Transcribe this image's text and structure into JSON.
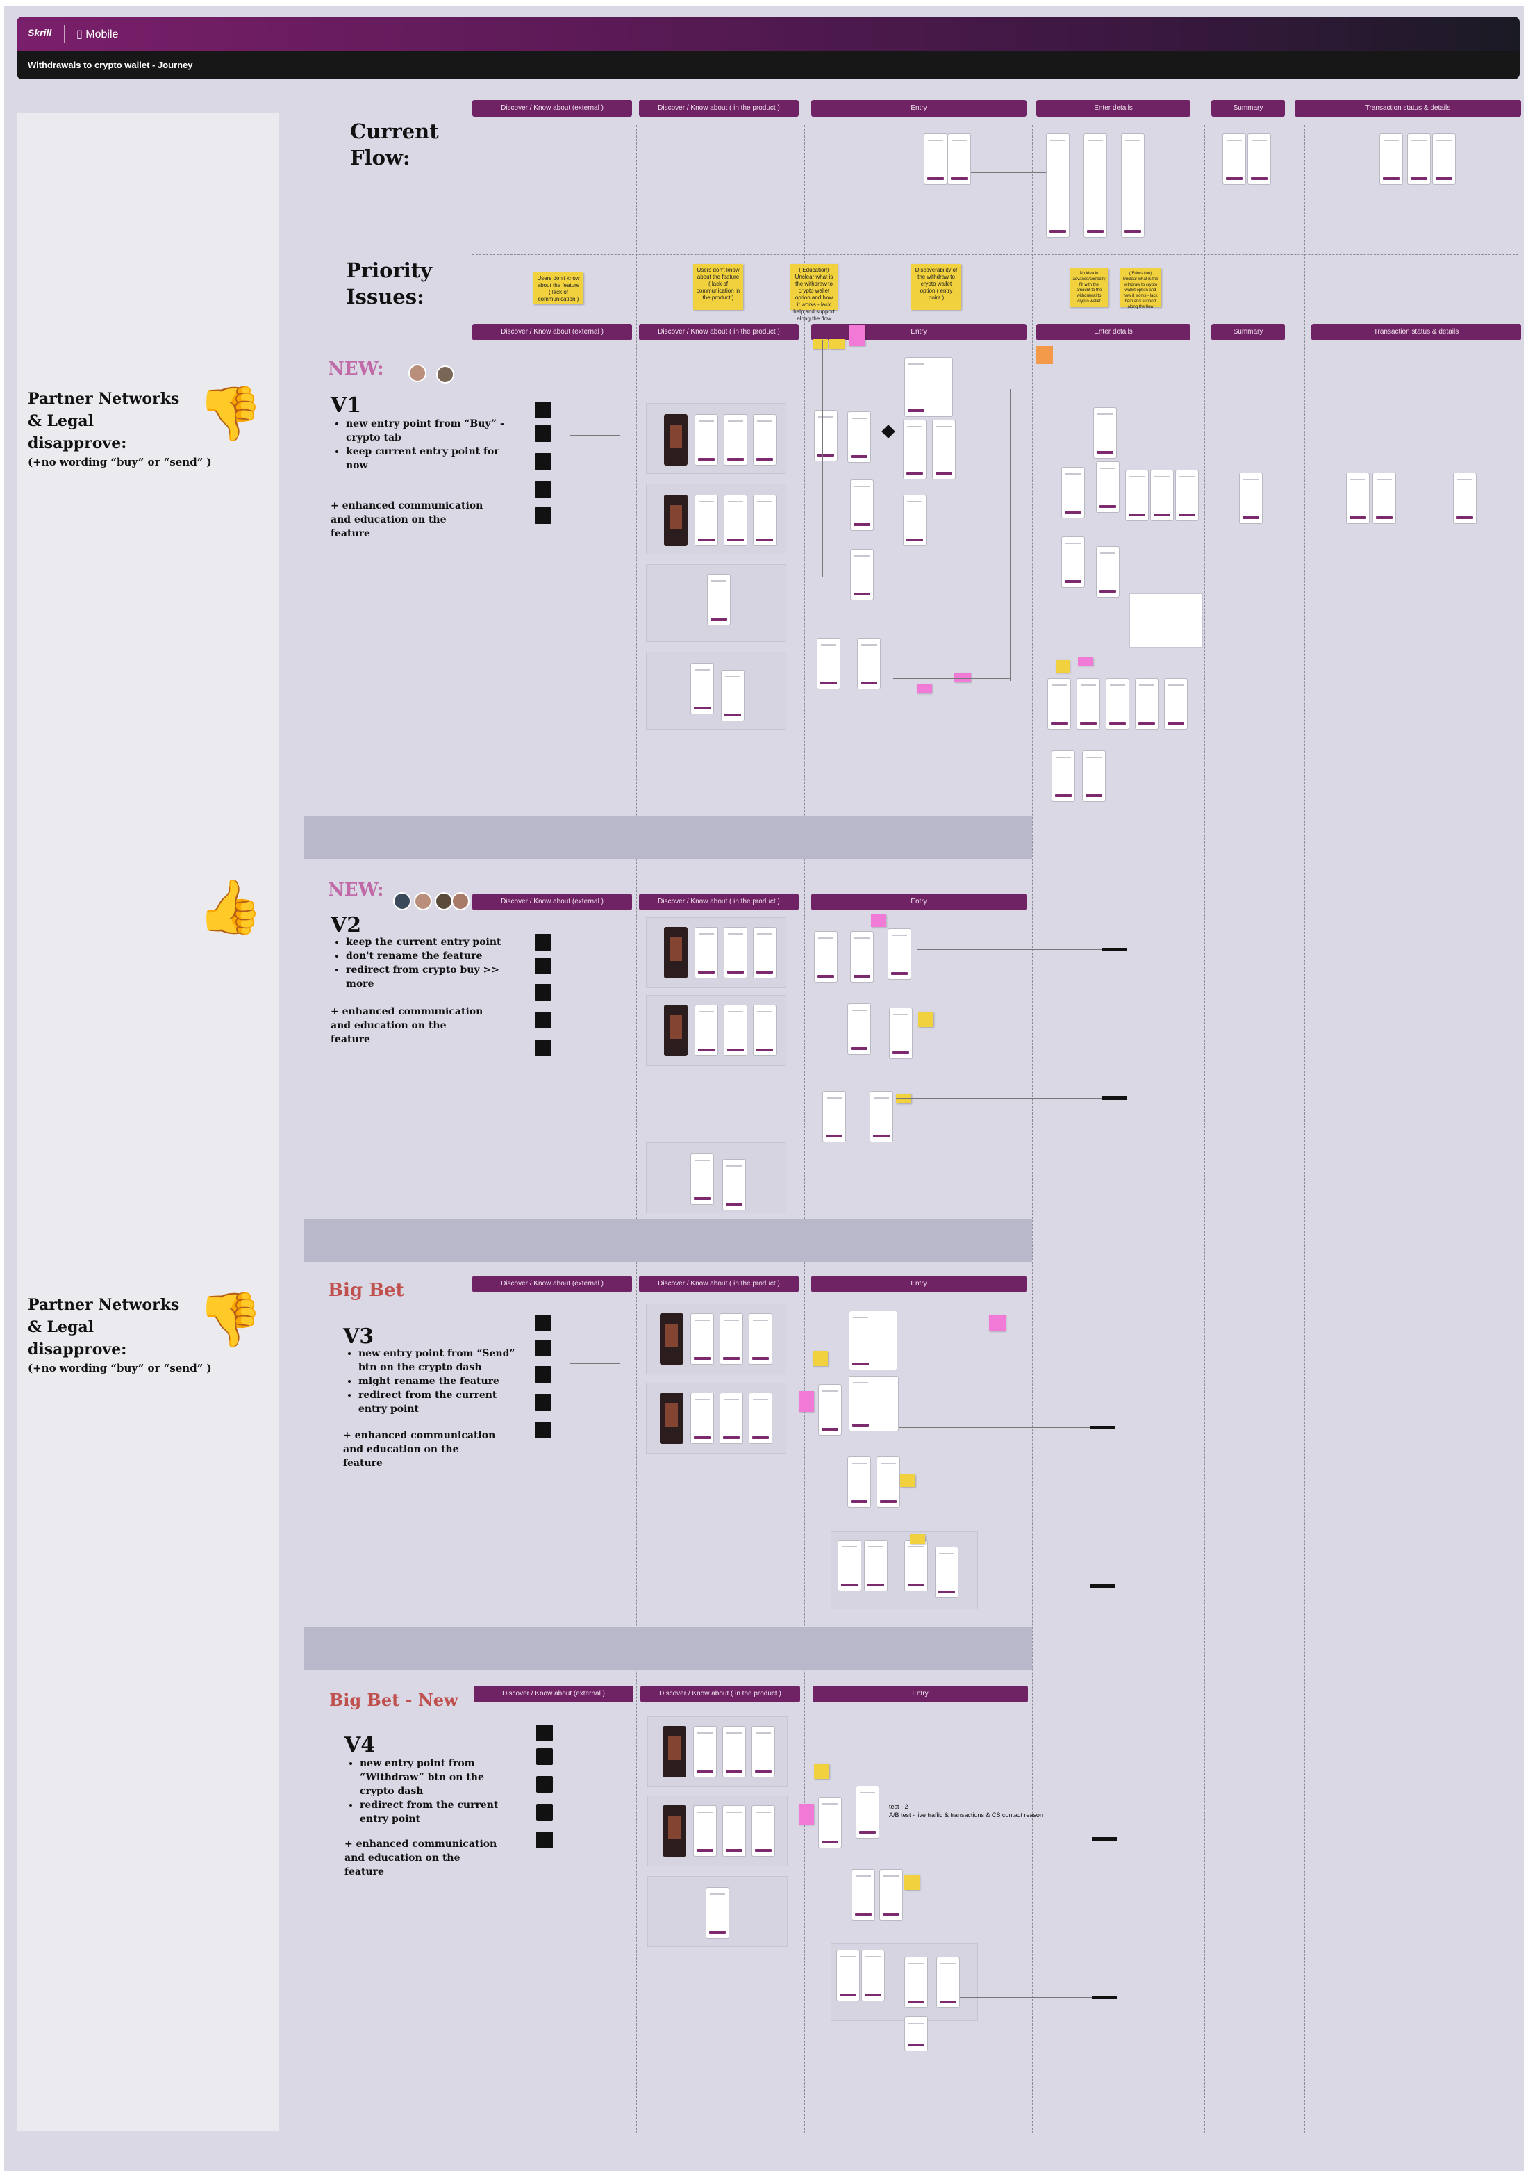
{
  "header": {
    "brand": "Skrill",
    "platform_icon": "mobile-phone-icon",
    "platform": "Mobile",
    "board_title": "Withdrawals to crypto wallet - Journey"
  },
  "stages_top": [
    "Discover / Know about (external )",
    "Discover / Know about ( in the product )",
    "Entry",
    "Enter details",
    "Summary",
    "Transaction status & details"
  ],
  "stages_v1": [
    "Discover / Know about (external )",
    "Discover / Know about ( in the product )",
    "Entry",
    "Enter details",
    "Summary",
    "Transaction status & details"
  ],
  "stages_short": [
    "Discover / Know about (external )",
    "Discover / Know about ( in the product )",
    "Entry"
  ],
  "sections": {
    "current_flow": "Current Flow:",
    "priority_issues": "Priority Issues:"
  },
  "priority_stickies": [
    "Users don't know about the feature ( lack of communication )",
    "Users don't know about the feature ( lack of communication in the product )",
    "( Education) Unclear what is the withdraw to crypto wallet option and how it works - lack help and support along the flow",
    "Discoverability of the withdraw to crypto wallet option ( entry point )",
    "No idea in advance/correctly fill with the amount to the withdrawal to crypto wallet",
    "( Education) Unclear what is the withdraw to crypto wallet option and how it works - lack help and support along the flow"
  ],
  "left_notes": {
    "disapprove_1_title": "Partner Networks & Legal disapprove:",
    "disapprove_1_note": "(+no wording “buy” or “send” )",
    "disapprove_2_title": "Partner Networks & Legal disapprove:",
    "disapprove_2_note": "(+no wording “buy” or “send” )",
    "thumbs_down": "👎",
    "thumbs_up": "👍"
  },
  "variants": [
    {
      "tag": "NEW:",
      "name": "V1",
      "bullets": [
        "new entry point from “Buy” - crypto tab",
        "keep current entry point for now"
      ],
      "extra": "+ enhanced communication and education on the feature"
    },
    {
      "tag": "NEW:",
      "name": "V2",
      "bullets": [
        "keep the current entry point",
        "don't rename the feature",
        "redirect from crypto buy >> more"
      ],
      "extra": "+ enhanced communication and education on the feature"
    },
    {
      "tag": "Big Bet",
      "name": "V3",
      "bullets": [
        "new entry point from “Send” btn on the crypto dash",
        "might rename the feature",
        "redirect from the current entry point"
      ],
      "extra": "+ enhanced communication and education on the feature"
    },
    {
      "tag": "Big Bet - New",
      "name": "V4",
      "bullets": [
        "new entry point from “Withdraw” btn on the crypto dash",
        "redirect from the current entry point"
      ],
      "extra": "+ enhanced communication and education on the feature"
    }
  ],
  "v4_note": [
    "test - 2",
    "A/B test - live traffic & transactions & CS contact reason"
  ],
  "colors": {
    "brand_purple": "#6f2264",
    "accent_pink": "#c06aa8",
    "accent_red": "#c0504d",
    "sticky_yellow": "#f1d13e",
    "sticky_pink": "#f07ad6"
  }
}
